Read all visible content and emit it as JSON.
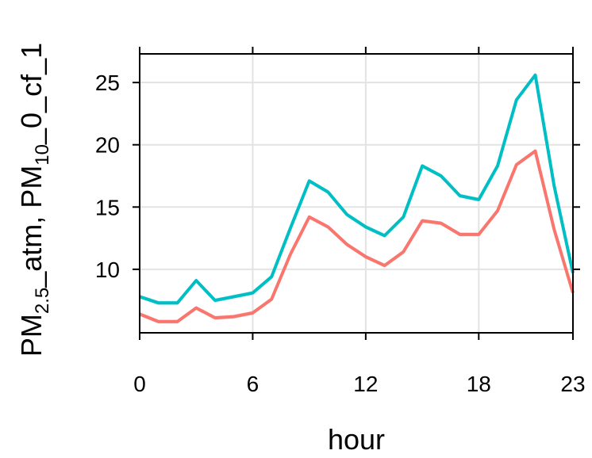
{
  "chart_data": {
    "type": "line",
    "xlabel": "hour",
    "ylabel": {
      "parts": [
        "PM",
        "2.5",
        "_atm, PM",
        "10",
        "_0_cf_1"
      ],
      "text": "PM2.5_atm, PM10_0_cf_1"
    },
    "x": [
      0,
      1,
      2,
      3,
      4,
      5,
      6,
      7,
      8,
      9,
      10,
      11,
      12,
      13,
      14,
      15,
      16,
      17,
      18,
      19,
      20,
      21,
      22,
      23
    ],
    "xticks": [
      0,
      6,
      12,
      18,
      23
    ],
    "yticks": [
      10,
      15,
      20,
      25
    ],
    "xlim": [
      0,
      23
    ],
    "ylim": [
      4.9,
      27.3
    ],
    "grid": true,
    "legend": "none",
    "series": [
      {
        "color": "#00BFC4",
        "values": [
          7.8,
          7.3,
          7.3,
          9.1,
          7.5,
          7.8,
          8.1,
          9.4,
          13.3,
          17.1,
          16.2,
          14.4,
          13.4,
          12.7,
          14.2,
          18.3,
          17.5,
          15.9,
          15.6,
          18.3,
          23.6,
          25.6,
          16.7,
          9.7
        ]
      },
      {
        "color": "#F8766D",
        "values": [
          6.4,
          5.8,
          5.8,
          6.9,
          6.1,
          6.2,
          6.5,
          7.6,
          11.2,
          14.2,
          13.4,
          12.0,
          11.0,
          10.3,
          11.4,
          13.9,
          13.7,
          12.8,
          12.8,
          14.7,
          18.4,
          19.5,
          13.2,
          8.1
        ]
      }
    ]
  }
}
